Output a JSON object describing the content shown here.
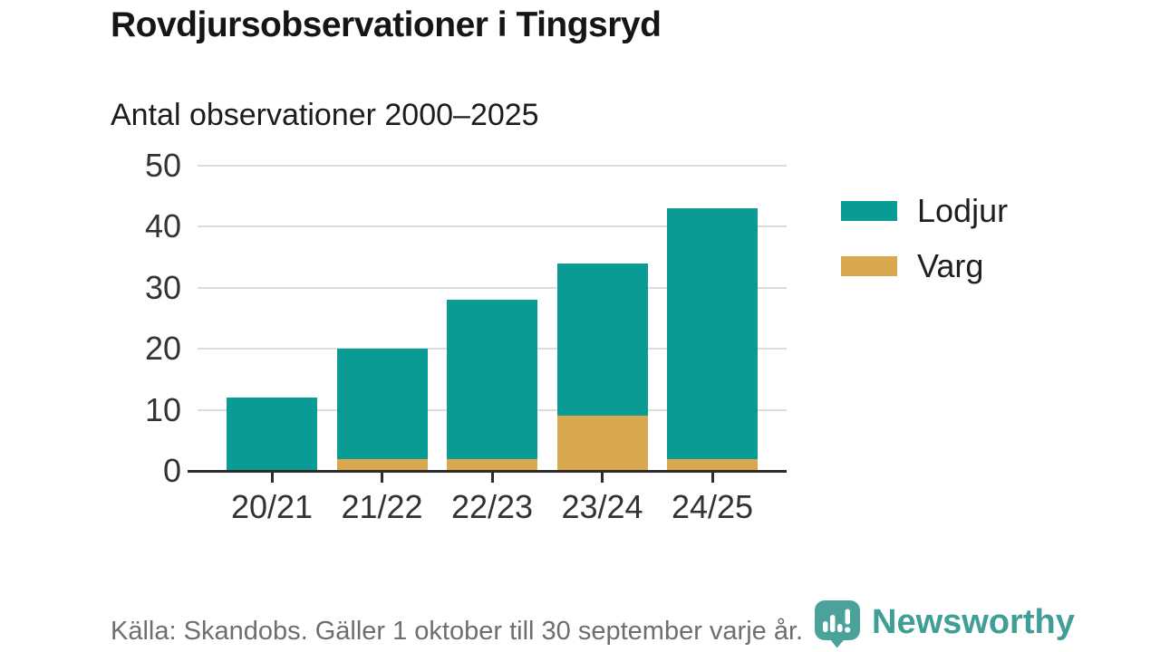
{
  "header": {
    "title": "Rovdjursobservationer i Tingsryd",
    "subtitle": "Antal observationer 2000–2025"
  },
  "chart_data": {
    "type": "bar",
    "stacked": true,
    "categories": [
      "20/21",
      "21/22",
      "22/23",
      "23/24",
      "24/25"
    ],
    "series": [
      {
        "name": "Lodjur",
        "color": "#0a9c94",
        "values": [
          12,
          18,
          26,
          25,
          41
        ]
      },
      {
        "name": "Varg",
        "color": "#d9a74e",
        "values": [
          0,
          2,
          2,
          9,
          2
        ]
      }
    ],
    "stack_order_bottom_to_top": [
      "Varg",
      "Lodjur"
    ],
    "totals": [
      12,
      20,
      28,
      34,
      43
    ],
    "title": "Rovdjursobservationer i Tingsryd",
    "subtitle": "Antal observationer 2000–2025",
    "xlabel": "",
    "ylabel": "",
    "ylim": [
      0,
      50
    ],
    "yticks": [
      0,
      10,
      20,
      30,
      40,
      50
    ],
    "grid": true,
    "legend_position": "right"
  },
  "footer": {
    "source": "Källa: Skandobs. Gäller 1 oktober till 30 september varje år."
  },
  "branding": {
    "name": "Newsworthy",
    "logo_color": "#4aa29a",
    "logo_glyph_color": "#ffffff",
    "text_color": "#3f9e96"
  },
  "colors": {
    "background": "#ffffff",
    "title_text": "#151515",
    "subtitle_text": "#1c1c1c",
    "axis_line": "#2d2d2d",
    "tick_label": "#333333",
    "gridline": "#dcdcdc",
    "source_text": "#6e6e6e"
  }
}
